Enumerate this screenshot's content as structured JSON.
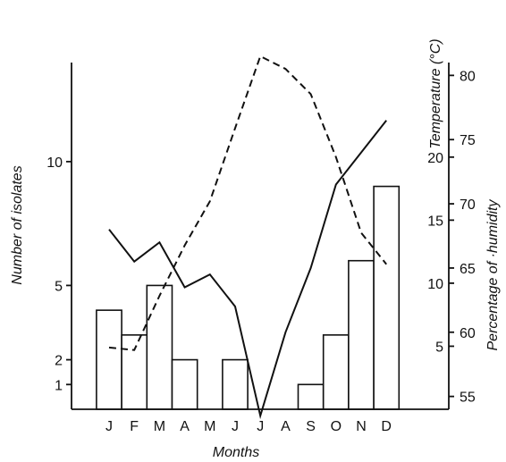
{
  "chart_data": {
    "type": "bar",
    "categories": [
      "J",
      "F",
      "M",
      "A",
      "M",
      "J",
      "J",
      "A",
      "S",
      "O",
      "N",
      "D"
    ],
    "xlabel": "Months",
    "ylabel": "Number of isolates",
    "ylim": [
      0,
      14
    ],
    "yticks": [
      1,
      2,
      5,
      10
    ],
    "bars": [
      4,
      3,
      5,
      2,
      0,
      2,
      0,
      0,
      1,
      3,
      6,
      9
    ],
    "temperature": {
      "label": "Temperature (°C)",
      "ylim": [
        0,
        27.5
      ],
      "ticks": [
        5,
        10,
        15,
        20
      ],
      "style": "dashed",
      "values": [
        4.9,
        4.7,
        9,
        13,
        16.5,
        22.3,
        28,
        27,
        25,
        20,
        14,
        11.5
      ]
    },
    "humidity": {
      "label": "Percentage of ·humidity",
      "ylim": [
        54,
        81
      ],
      "ticks": [
        55,
        60,
        65,
        70,
        75,
        80
      ],
      "style": "solid",
      "values": [
        68,
        65.5,
        67,
        63.5,
        64.5,
        62,
        53.5,
        60,
        65,
        71.5,
        74,
        76.5
      ]
    },
    "grid": false,
    "legend": "none"
  }
}
